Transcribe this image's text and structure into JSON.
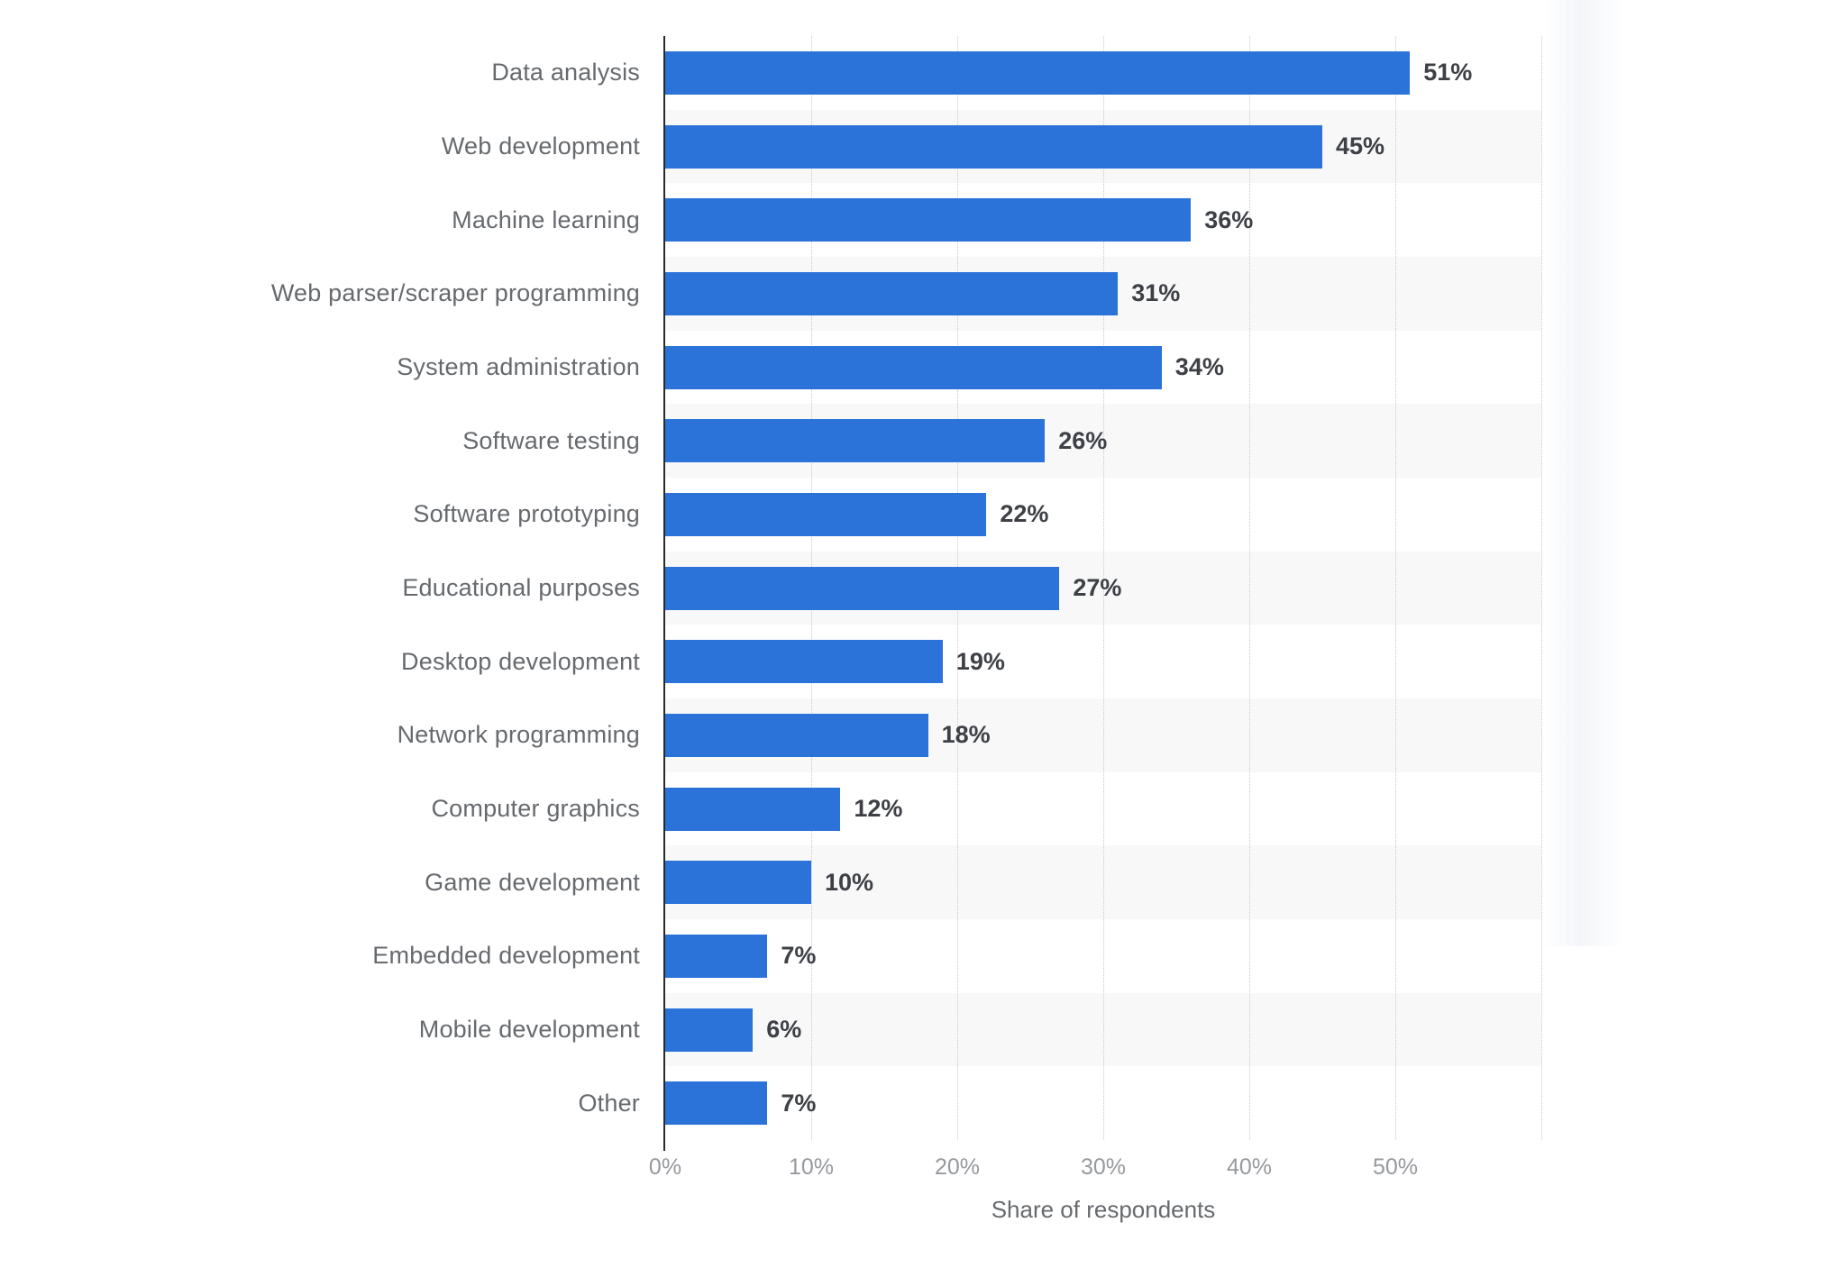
{
  "chart_data": {
    "type": "bar",
    "orientation": "horizontal",
    "title": "",
    "categories": [
      "Data analysis",
      "Web development",
      "Machine learning",
      "Web parser/scraper programming",
      "System administration",
      "Software testing",
      "Software prototyping",
      "Educational purposes",
      "Desktop development",
      "Network programming",
      "Computer graphics",
      "Game development",
      "Embedded development",
      "Mobile development",
      "Other"
    ],
    "values": [
      51,
      45,
      36,
      31,
      34,
      26,
      22,
      27,
      19,
      18,
      12,
      10,
      7,
      6,
      7
    ],
    "value_labels": [
      "51%",
      "45%",
      "36%",
      "31%",
      "34%",
      "26%",
      "22%",
      "27%",
      "19%",
      "18%",
      "12%",
      "10%",
      "7%",
      "6%",
      "7%"
    ],
    "xlabel": "Share of respondents",
    "x_ticks": [
      "0%",
      "10%",
      "20%",
      "30%",
      "40%",
      "50%"
    ],
    "x_tick_values": [
      0,
      10,
      20,
      30,
      40,
      50
    ],
    "xlim": [
      0,
      60
    ],
    "grid": "vertical-dotted",
    "legend": "none"
  },
  "colors": {
    "bar": "#2b72d9",
    "band": "#f8f8f9",
    "axis_line": "#2a2a2a",
    "gridline": "#c9c9c9",
    "category_text": "#666a6e",
    "value_text": "#3d4045",
    "tick_text": "#96999e",
    "background": "#ffffff"
  }
}
